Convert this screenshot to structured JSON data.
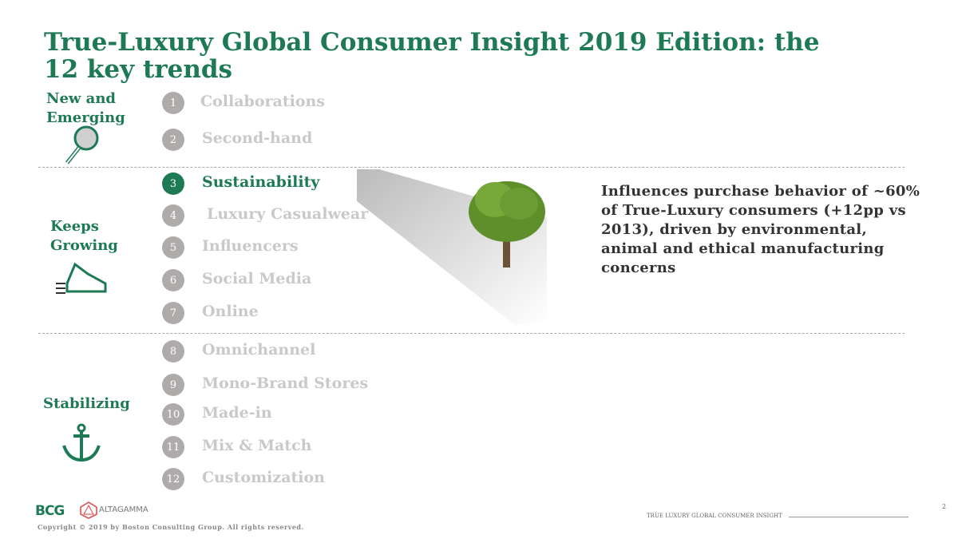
{
  "title": "True-Luxury Global Consumer Insight 2019 Edition: the 12 key trends",
  "categories": [
    {
      "label": "New and Emerging",
      "icon": "magnifier-icon"
    },
    {
      "label": "Keeps Growing",
      "icon": "sneaker-icon"
    },
    {
      "label": "Stabilizing",
      "icon": "anchor-icon"
    }
  ],
  "trends": [
    {
      "n": "1",
      "label": "Collaborations"
    },
    {
      "n": "2",
      "label": "Second-hand"
    },
    {
      "n": "3",
      "label": "Sustainability"
    },
    {
      "n": "4",
      "label": "Luxury Casualwear"
    },
    {
      "n": "5",
      "label": "Influencers"
    },
    {
      "n": "6",
      "label": "Social Media"
    },
    {
      "n": "7",
      "label": "Online"
    },
    {
      "n": "8",
      "label": "Omnichannel"
    },
    {
      "n": "9",
      "label": "Mono-Brand Stores"
    },
    {
      "n": "10",
      "label": "Made-in"
    },
    {
      "n": "11",
      "label": "Mix & Match"
    },
    {
      "n": "12",
      "label": "Customization"
    }
  ],
  "highlight": {
    "text": "Influences purchase behavior of ~60% of True-Luxury consumers (+12pp vs 2013), driven by environmental, animal and ethical manufacturing concerns"
  },
  "footer": {
    "logo1": "BCG",
    "logo2": "ALTAGAMMA",
    "copyright": "Copyright © 2019 by Boston Consulting Group. All rights reserved.",
    "section": "TRUE LUXURY GLOBAL CONSUMER INSIGHT",
    "page": "2"
  },
  "colors": {
    "green": "#1e7a55",
    "gray": "#b0abab"
  }
}
